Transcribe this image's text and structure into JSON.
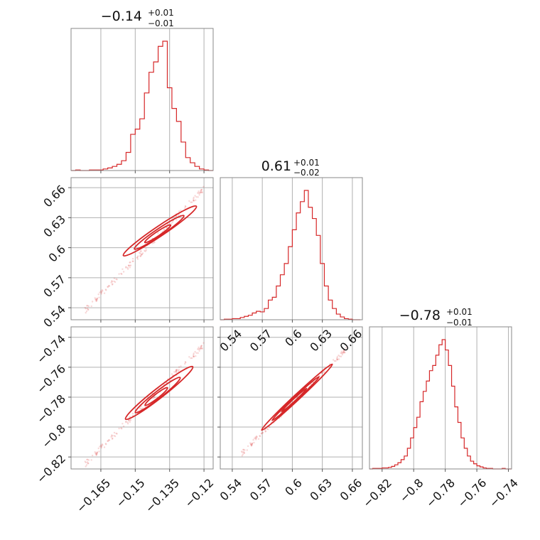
{
  "figure": {
    "style": "corner-plot",
    "accent_color": "#d62728",
    "grid": true
  },
  "chart_data": [
    {
      "type": "histogram",
      "panel": "diag-1",
      "title": "−0.14",
      "title_plus": "+0.01",
      "title_minus": "−0.01",
      "xlim": [
        -0.178,
        -0.116
      ],
      "x_ticks": [
        -0.165,
        -0.15,
        -0.135,
        -0.12
      ],
      "bins": [
        -0.178,
        -0.176,
        -0.174,
        -0.172,
        -0.17,
        -0.168,
        -0.166,
        -0.164,
        -0.162,
        -0.16,
        -0.158,
        -0.156,
        -0.154,
        -0.152,
        -0.15,
        -0.148,
        -0.146,
        -0.144,
        -0.142,
        -0.14,
        -0.138,
        -0.136,
        -0.134,
        -0.132,
        -0.13,
        -0.128,
        -0.126,
        -0.124,
        -0.122,
        -0.12,
        -0.118,
        -0.116
      ],
      "counts": [
        0,
        1,
        0,
        0,
        1,
        1,
        1,
        3,
        5,
        8,
        12,
        19,
        35,
        70,
        80,
        100,
        150,
        190,
        210,
        240,
        250,
        160,
        120,
        95,
        55,
        25,
        15,
        8,
        3,
        1,
        0
      ]
    },
    {
      "type": "histogram",
      "panel": "diag-2",
      "title": "0.61",
      "title_plus": "+0.01",
      "title_minus": "−0.02",
      "xlim": [
        0.528,
        0.67
      ],
      "x_ticks": [
        0.54,
        0.57,
        0.6,
        0.63,
        0.66
      ],
      "bins": [
        0.528,
        0.532,
        0.536,
        0.54,
        0.544,
        0.548,
        0.552,
        0.556,
        0.56,
        0.564,
        0.568,
        0.572,
        0.576,
        0.58,
        0.584,
        0.588,
        0.592,
        0.596,
        0.6,
        0.604,
        0.608,
        0.612,
        0.616,
        0.62,
        0.624,
        0.628,
        0.632,
        0.636,
        0.64,
        0.644,
        0.648,
        0.652,
        0.656,
        0.66,
        0.664,
        0.668
      ],
      "counts": [
        0,
        1,
        1,
        2,
        2,
        4,
        6,
        8,
        12,
        15,
        14,
        20,
        35,
        40,
        60,
        80,
        100,
        130,
        160,
        190,
        210,
        230,
        200,
        180,
        150,
        100,
        60,
        35,
        20,
        10,
        5,
        2,
        1,
        0,
        0
      ]
    },
    {
      "type": "histogram",
      "panel": "diag-3",
      "title": "−0.78",
      "title_plus": "+0.01",
      "title_minus": "−0.01",
      "xlim": [
        -0.828,
        -0.738
      ],
      "x_ticks": [
        -0.82,
        -0.8,
        -0.78,
        -0.76,
        -0.74
      ],
      "bins": [
        -0.828,
        -0.826,
        -0.824,
        -0.822,
        -0.82,
        -0.818,
        -0.816,
        -0.814,
        -0.812,
        -0.81,
        -0.808,
        -0.806,
        -0.804,
        -0.802,
        -0.8,
        -0.798,
        -0.796,
        -0.794,
        -0.792,
        -0.79,
        -0.788,
        -0.786,
        -0.784,
        -0.782,
        -0.78,
        -0.778,
        -0.776,
        -0.774,
        -0.772,
        -0.77,
        -0.768,
        -0.766,
        -0.764,
        -0.762,
        -0.76,
        -0.758,
        -0.756,
        -0.754,
        -0.752,
        -0.75,
        -0.748,
        -0.746,
        -0.744,
        -0.742,
        -0.74,
        -0.738
      ],
      "counts": [
        0,
        1,
        1,
        1,
        2,
        2,
        3,
        5,
        8,
        12,
        18,
        25,
        40,
        60,
        80,
        100,
        130,
        150,
        170,
        190,
        200,
        220,
        240,
        250,
        230,
        200,
        160,
        120,
        90,
        60,
        40,
        25,
        15,
        10,
        6,
        4,
        2,
        1,
        1,
        0,
        0,
        0,
        1,
        0,
        0
      ]
    },
    {
      "type": "scatter",
      "panel": "pair-1-2",
      "xlim": [
        -0.178,
        -0.116
      ],
      "ylim": [
        0.528,
        0.67
      ],
      "y_ticks": [
        0.54,
        0.57,
        0.6,
        0.63,
        0.66
      ],
      "x_range": [
        -0.172,
        -0.12
      ],
      "y_range": [
        0.537,
        0.659
      ]
    },
    {
      "type": "scatter",
      "panel": "pair-1-3",
      "xlim": [
        -0.178,
        -0.116
      ],
      "ylim": [
        -0.828,
        -0.733
      ],
      "y_ticks": [
        -0.82,
        -0.8,
        -0.78,
        -0.76,
        -0.74
      ],
      "x_range": [
        -0.172,
        -0.12
      ],
      "y_range": [
        -0.825,
        -0.745
      ]
    },
    {
      "type": "scatter",
      "panel": "pair-2-3",
      "xlim": [
        0.528,
        0.67
      ],
      "ylim": [
        -0.828,
        -0.733
      ],
      "x_range": [
        0.549,
        0.654
      ],
      "y_range": [
        -0.818,
        -0.748
      ]
    }
  ]
}
